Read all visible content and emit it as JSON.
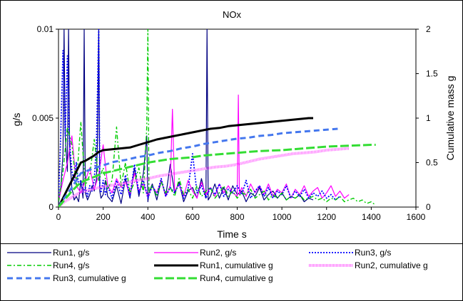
{
  "chart_data": {
    "type": "line",
    "title": "NOx",
    "xlabel": "Time  s",
    "ylabel_left": "g/s",
    "ylabel_right": "Cumulative mass g",
    "xlim": [
      0,
      1600
    ],
    "ylim_left": [
      0,
      0.01
    ],
    "ylim_right": [
      0,
      2
    ],
    "x_ticks": [
      "0",
      "200",
      "400",
      "600",
      "800",
      "1000",
      "1200",
      "1400",
      "1600"
    ],
    "y_left_ticks": [
      "0",
      "0.005",
      "0.01"
    ],
    "y_right_ticks": [
      "0",
      "0.5",
      "1",
      "1.5",
      "2"
    ],
    "grid": false,
    "legend_position": "bottom",
    "series": [
      {
        "name": "Run1, g/s",
        "axis": "left",
        "color": "#000080",
        "style": "thin-solid",
        "x": [
          0,
          10,
          20,
          25,
          30,
          40,
          45,
          50,
          60,
          65,
          70,
          80,
          90,
          100,
          110,
          115,
          120,
          130,
          140,
          150,
          160,
          170,
          175,
          180,
          185,
          190,
          200,
          210,
          220,
          240,
          260,
          280,
          300,
          320,
          340,
          360,
          380,
          395,
          400,
          405,
          420,
          440,
          460,
          480,
          500,
          520,
          540,
          560,
          580,
          600,
          620,
          640,
          660,
          665,
          670,
          680,
          700,
          720,
          740,
          760,
          780,
          800,
          820,
          840,
          860,
          880,
          900,
          920,
          940,
          960,
          980,
          1000,
          1020,
          1040,
          1060,
          1080,
          1100,
          1120,
          1140
        ],
        "y": [
          0.0002,
          0.001,
          0.003,
          0.01,
          0.004,
          0.002,
          0.01,
          0.003,
          0.001,
          0.0008,
          0.0004,
          0.0006,
          0.0003,
          0.0015,
          0.0005,
          0.01,
          0.0008,
          0.0004,
          0.0007,
          0.0012,
          0.0009,
          0.0016,
          0.004,
          0.01,
          0.0009,
          0.0005,
          0.0007,
          0.0015,
          0.0006,
          0.0003,
          0.0012,
          0.0002,
          0.0016,
          0.0005,
          0.0022,
          0.0006,
          0.0019,
          0.004,
          0.0003,
          0.0008,
          0.0013,
          0.0004,
          0.0015,
          0.0006,
          0.0024,
          0.0008,
          0.0014,
          0.0003,
          0.0009,
          0.0011,
          0.0005,
          0.0016,
          0.0005,
          0.01,
          0.0004,
          0.0006,
          0.0013,
          0.0005,
          0.0011,
          0.0004,
          0.0012,
          0.0007,
          0.0009,
          0.0003,
          0.0008,
          0.0006,
          0.0011,
          0.0004,
          0.0007,
          0.0009,
          0.0005,
          0.0008,
          0.0004,
          0.0006,
          0.0005,
          0.0007,
          0.0003,
          0.0005,
          0.0004
        ]
      },
      {
        "name": "Run2, g/s",
        "axis": "left",
        "color": "#ff00ff",
        "style": "thin-solid",
        "x": [
          0,
          20,
          40,
          60,
          80,
          100,
          120,
          140,
          160,
          180,
          200,
          220,
          240,
          260,
          280,
          300,
          320,
          340,
          360,
          380,
          400,
          420,
          440,
          460,
          480,
          500,
          510,
          520,
          540,
          560,
          580,
          600,
          620,
          640,
          660,
          680,
          700,
          720,
          740,
          760,
          780,
          800,
          805,
          810,
          820,
          840,
          860,
          880,
          900,
          920,
          940,
          960,
          980,
          1000,
          1020,
          1040,
          1060,
          1080,
          1100,
          1120,
          1140,
          1160,
          1180,
          1200,
          1220,
          1240,
          1260,
          1280,
          1300
        ],
        "y": [
          0.0003,
          0.0015,
          0.0025,
          0.004,
          0.0012,
          0.0008,
          0.0015,
          0.0022,
          0.001,
          0.0018,
          0.0035,
          0.0012,
          0.0008,
          0.0016,
          0.0011,
          0.0014,
          0.0007,
          0.0019,
          0.0009,
          0.0013,
          0.0006,
          0.0012,
          0.0008,
          0.0015,
          0.0006,
          0.0012,
          0.0055,
          0.0009,
          0.0013,
          0.0006,
          0.0015,
          0.0009,
          0.0005,
          0.0014,
          0.0007,
          0.0011,
          0.0006,
          0.0013,
          0.0008,
          0.0012,
          0.0008,
          0.0006,
          0.0063,
          0.0007,
          0.0011,
          0.0006,
          0.0013,
          0.0008,
          0.0012,
          0.0007,
          0.0013,
          0.0006,
          0.001,
          0.0008,
          0.0013,
          0.0005,
          0.001,
          0.0007,
          0.0012,
          0.0006,
          0.0009,
          0.0011,
          0.0005,
          0.0008,
          0.0012,
          0.0006,
          0.0009,
          0.0005,
          0.0007
        ]
      },
      {
        "name": "Run3, g/s",
        "axis": "left",
        "color": "#0000ff",
        "style": "dotted",
        "x": [
          0,
          10,
          20,
          25,
          30,
          40,
          45,
          50,
          60,
          70,
          80,
          90,
          100,
          110,
          120,
          130,
          140,
          150,
          160,
          170,
          180,
          185,
          190,
          200,
          210,
          220,
          240,
          260,
          280,
          300,
          320,
          340,
          360,
          380,
          400,
          420,
          440,
          460,
          480,
          500,
          520,
          540,
          560,
          580,
          600,
          620,
          640,
          660,
          680,
          700,
          720,
          740,
          760,
          780,
          800,
          820,
          840,
          860,
          880,
          900,
          920,
          940,
          960,
          980,
          1000,
          1020,
          1040,
          1060,
          1080,
          1100,
          1120,
          1140,
          1160,
          1180,
          1200,
          1220,
          1240,
          1260
        ],
        "y": [
          0.0003,
          0.004,
          0.0088,
          0.0065,
          0.004,
          0.0085,
          0.005,
          0.0035,
          0.002,
          0.0015,
          0.0025,
          0.0012,
          0.0015,
          0.0008,
          0.0011,
          0.0006,
          0.0012,
          0.0009,
          0.0015,
          0.0035,
          0.01,
          0.0012,
          0.0008,
          0.0015,
          0.0007,
          0.0012,
          0.0005,
          0.0015,
          0.0007,
          0.0018,
          0.0006,
          0.0024,
          0.0008,
          0.0015,
          0.0005,
          0.0012,
          0.0007,
          0.0016,
          0.0006,
          0.0011,
          0.0008,
          0.0013,
          0.0005,
          0.001,
          0.003,
          0.0008,
          0.0012,
          0.0005,
          0.0011,
          0.0007,
          0.0013,
          0.0006,
          0.001,
          0.0008,
          0.0012,
          0.0007,
          0.0015,
          0.0005,
          0.0009,
          0.0012,
          0.0006,
          0.0011,
          0.0005,
          0.0009,
          0.0007,
          0.0012,
          0.0005,
          0.0009,
          0.0006,
          0.001,
          0.0005,
          0.0008,
          0.0006,
          0.0009,
          0.0005,
          0.0007,
          0.0004,
          0.0006
        ]
      },
      {
        "name": "Run4, g/s",
        "axis": "left",
        "color": "#00cc00",
        "style": "dash-dot",
        "x": [
          0,
          20,
          40,
          60,
          80,
          100,
          110,
          120,
          140,
          160,
          180,
          200,
          220,
          240,
          260,
          280,
          300,
          320,
          340,
          360,
          380,
          395,
          400,
          405,
          420,
          440,
          460,
          480,
          500,
          520,
          540,
          560,
          580,
          600,
          620,
          640,
          660,
          680,
          700,
          720,
          740,
          760,
          780,
          800,
          820,
          840,
          860,
          880,
          900,
          920,
          940,
          960,
          980,
          1000,
          1020,
          1040,
          1060,
          1080,
          1100,
          1120,
          1140,
          1160,
          1180,
          1200,
          1220,
          1240,
          1260,
          1280,
          1300,
          1320,
          1340,
          1360,
          1380,
          1400,
          1420
        ],
        "y": [
          0.0003,
          0.002,
          0.0045,
          0.0035,
          0.0012,
          0.0048,
          0.003,
          0.0012,
          0.0018,
          0.0038,
          0.0015,
          0.0022,
          0.001,
          0.0015,
          0.0045,
          0.0012,
          0.0025,
          0.0008,
          0.0014,
          0.0022,
          0.0008,
          0.0045,
          0.01,
          0.0008,
          0.0012,
          0.0006,
          0.0014,
          0.0008,
          0.0011,
          0.0006,
          0.0016,
          0.0007,
          0.001,
          0.0005,
          0.0012,
          0.0006,
          0.0009,
          0.0011,
          0.0005,
          0.0008,
          0.0012,
          0.0006,
          0.0009,
          0.0005,
          0.0008,
          0.0007,
          0.001,
          0.0005,
          0.0007,
          0.0009,
          0.0004,
          0.0007,
          0.0005,
          0.0008,
          0.0004,
          0.0006,
          0.0005,
          0.0007,
          0.0004,
          0.0005,
          0.0006,
          0.0004,
          0.0005,
          0.0003,
          0.0005,
          0.0004,
          0.0006,
          0.0003,
          0.0004,
          0.0005,
          0.0003,
          0.0004,
          0.0002,
          0.0003,
          0.0001
        ]
      },
      {
        "name": "Run1, cumulative g",
        "axis": "right",
        "color": "#000000",
        "style": "thick-solid",
        "x": [
          0,
          20,
          40,
          60,
          80,
          100,
          120,
          140,
          160,
          180,
          200,
          240,
          280,
          320,
          360,
          400,
          440,
          480,
          520,
          560,
          600,
          640,
          680,
          720,
          760,
          800,
          840,
          880,
          920,
          960,
          1000,
          1040,
          1080,
          1120,
          1140
        ],
        "y": [
          0,
          0.1,
          0.2,
          0.3,
          0.4,
          0.5,
          0.52,
          0.55,
          0.58,
          0.62,
          0.64,
          0.65,
          0.66,
          0.67,
          0.7,
          0.73,
          0.76,
          0.78,
          0.8,
          0.82,
          0.84,
          0.86,
          0.88,
          0.89,
          0.91,
          0.92,
          0.93,
          0.94,
          0.95,
          0.96,
          0.97,
          0.98,
          0.99,
          1.0,
          1.0
        ]
      },
      {
        "name": "Run2, cumulative g",
        "axis": "right",
        "color": "#ff66ff",
        "style": "thick-hatched",
        "x": [
          0,
          20,
          40,
          60,
          80,
          100,
          150,
          200,
          250,
          300,
          350,
          400,
          450,
          500,
          550,
          600,
          650,
          700,
          750,
          800,
          850,
          900,
          950,
          1000,
          1050,
          1100,
          1150,
          1200,
          1250,
          1300
        ],
        "y": [
          0,
          0.05,
          0.08,
          0.11,
          0.14,
          0.17,
          0.2,
          0.23,
          0.25,
          0.27,
          0.3,
          0.32,
          0.35,
          0.37,
          0.39,
          0.41,
          0.43,
          0.45,
          0.46,
          0.48,
          0.51,
          0.54,
          0.56,
          0.58,
          0.6,
          0.61,
          0.62,
          0.64,
          0.65,
          0.66
        ]
      },
      {
        "name": "Run3, cumulative g",
        "axis": "right",
        "color": "#4477ee",
        "style": "dashed",
        "x": [
          0,
          20,
          40,
          60,
          80,
          100,
          150,
          200,
          250,
          300,
          350,
          400,
          450,
          500,
          550,
          600,
          650,
          700,
          750,
          800,
          850,
          900,
          950,
          1000,
          1050,
          1100,
          1150,
          1200,
          1250
        ],
        "y": [
          0,
          0.08,
          0.15,
          0.22,
          0.3,
          0.38,
          0.43,
          0.47,
          0.51,
          0.53,
          0.56,
          0.58,
          0.61,
          0.63,
          0.66,
          0.68,
          0.71,
          0.73,
          0.75,
          0.77,
          0.78,
          0.8,
          0.81,
          0.83,
          0.84,
          0.85,
          0.86,
          0.87,
          0.88
        ]
      },
      {
        "name": "Run4, cumulative g",
        "axis": "right",
        "color": "#33dd33",
        "style": "thick-dashed",
        "x": [
          0,
          20,
          40,
          60,
          80,
          100,
          150,
          200,
          250,
          300,
          350,
          400,
          450,
          500,
          550,
          600,
          650,
          700,
          750,
          800,
          850,
          900,
          950,
          1000,
          1050,
          1100,
          1150,
          1200,
          1250,
          1300,
          1350,
          1400,
          1420
        ],
        "y": [
          0,
          0.06,
          0.12,
          0.18,
          0.23,
          0.28,
          0.33,
          0.38,
          0.41,
          0.44,
          0.47,
          0.5,
          0.52,
          0.54,
          0.55,
          0.56,
          0.58,
          0.59,
          0.6,
          0.61,
          0.62,
          0.63,
          0.635,
          0.64,
          0.65,
          0.66,
          0.67,
          0.68,
          0.685,
          0.69,
          0.695,
          0.7,
          0.7
        ]
      }
    ]
  }
}
